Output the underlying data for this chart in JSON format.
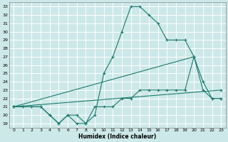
{
  "xlabel": "Humidex (Indice chaleur)",
  "bg_color": "#cde8e8",
  "grid_color": "#b8d8d8",
  "line_color": "#1a7a6e",
  "xlim": [
    -0.5,
    23.5
  ],
  "ylim": [
    18.5,
    33.5
  ],
  "xticks": [
    0,
    1,
    2,
    3,
    4,
    5,
    6,
    7,
    8,
    9,
    10,
    11,
    12,
    13,
    14,
    15,
    16,
    17,
    18,
    19,
    20,
    21,
    22,
    23
  ],
  "yticks": [
    19,
    20,
    21,
    22,
    23,
    24,
    25,
    26,
    27,
    28,
    29,
    30,
    31,
    32,
    33
  ],
  "series": [
    {
      "x": [
        0,
        1,
        2,
        3,
        4,
        5,
        6,
        7,
        8,
        9,
        10,
        11,
        12,
        13,
        14,
        15,
        16,
        17,
        18,
        19,
        20,
        21,
        22,
        23
      ],
      "y": [
        21,
        21,
        21,
        21,
        20,
        19,
        20,
        19,
        19,
        20,
        25,
        27,
        30,
        33,
        33,
        32,
        31,
        29,
        29,
        29,
        27,
        24,
        22,
        22
      ]
    },
    {
      "x": [
        0,
        1,
        2,
        3,
        4,
        5,
        6,
        7,
        8,
        9,
        10,
        11,
        12,
        13,
        14,
        15,
        16,
        17,
        18,
        19,
        20,
        21,
        22,
        23
      ],
      "y": [
        21,
        21,
        21,
        21,
        20,
        19,
        20,
        20,
        19,
        21,
        21,
        21,
        22,
        22,
        23,
        23,
        23,
        23,
        23,
        23,
        27,
        23,
        22,
        22
      ]
    },
    {
      "x": [
        0,
        20
      ],
      "y": [
        21,
        27
      ]
    },
    {
      "x": [
        0,
        23
      ],
      "y": [
        21,
        23
      ]
    }
  ]
}
